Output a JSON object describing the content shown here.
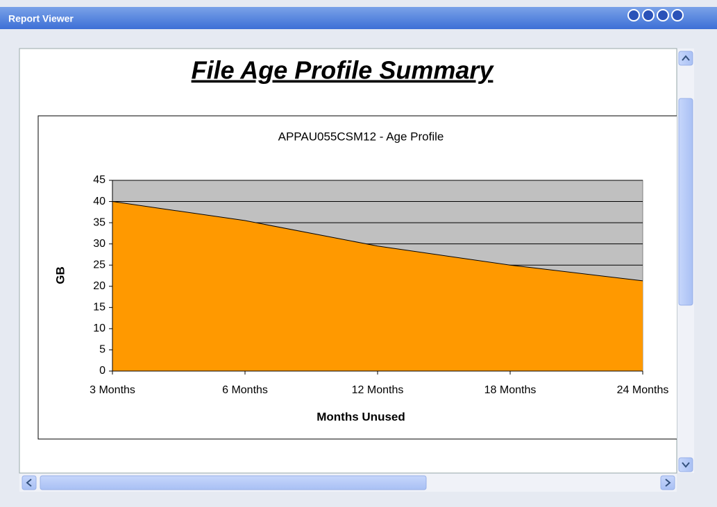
{
  "window": {
    "title": "Report Viewer"
  },
  "report": {
    "title": "File Age Profile Summary"
  },
  "chart_data": {
    "type": "area",
    "title": "APPAU055CSM12 - Age Profile",
    "x_label": "Months Unused",
    "y_label": "GB",
    "categories": [
      "3 Months",
      "6 Months",
      "12 Months",
      "18 Months",
      "24 Months"
    ],
    "values": [
      40,
      35.5,
      29.5,
      25,
      21.3
    ],
    "color": "#ff9900",
    "plot_background": "#c0c0c0",
    "ylim": [
      0,
      45
    ],
    "yticks": [
      0,
      5,
      10,
      15,
      20,
      25,
      30,
      35,
      40,
      45
    ],
    "grid": true
  }
}
